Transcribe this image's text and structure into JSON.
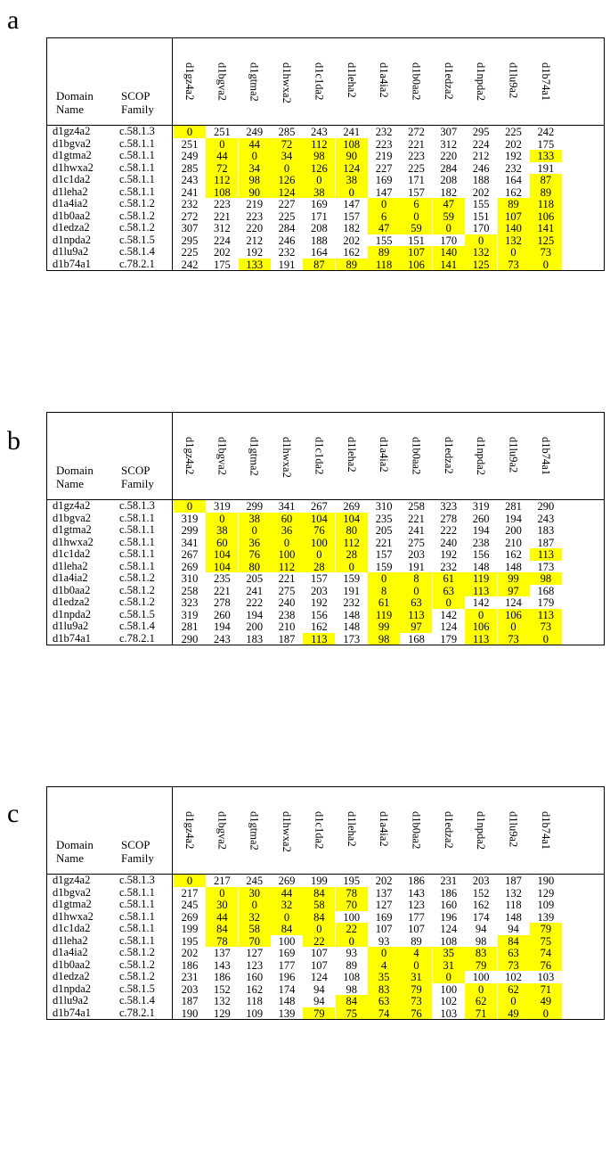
{
  "header": {
    "domain_name_line1": "Domain",
    "domain_name_line2": "Name",
    "scop_family_line1": "SCOP",
    "scop_family_line2": "Family"
  },
  "domains": [
    "d1gz4a2",
    "d1bgva2",
    "d1gtma2",
    "d1hwxa2",
    "d1c1da2",
    "d1leha2",
    "d1a4ia2",
    "d1b0aa2",
    "d1edza2",
    "d1npda2",
    "d1lu9a2",
    "d1b74a1"
  ],
  "families": [
    "c.58.1.3",
    "c.58.1.1",
    "c.58.1.1",
    "c.58.1.1",
    "c.58.1.1",
    "c.58.1.1",
    "c.58.1.2",
    "c.58.1.2",
    "c.58.1.2",
    "c.58.1.5",
    "c.58.1.4",
    "c.78.2.1"
  ],
  "panels": [
    {
      "label": "a",
      "matrix": [
        [
          0,
          251,
          249,
          285,
          243,
          241,
          232,
          272,
          307,
          295,
          225,
          242
        ],
        [
          251,
          0,
          44,
          72,
          112,
          108,
          223,
          221,
          312,
          224,
          202,
          175
        ],
        [
          249,
          44,
          0,
          34,
          98,
          90,
          219,
          223,
          220,
          212,
          192,
          133
        ],
        [
          285,
          72,
          34,
          0,
          126,
          124,
          227,
          225,
          284,
          246,
          232,
          191
        ],
        [
          243,
          112,
          98,
          126,
          0,
          38,
          169,
          171,
          208,
          188,
          164,
          87
        ],
        [
          241,
          108,
          90,
          124,
          38,
          0,
          147,
          157,
          182,
          202,
          162,
          89
        ],
        [
          232,
          223,
          219,
          227,
          169,
          147,
          0,
          6,
          47,
          155,
          89,
          118
        ],
        [
          272,
          221,
          223,
          225,
          171,
          157,
          6,
          0,
          59,
          151,
          107,
          106
        ],
        [
          307,
          312,
          220,
          284,
          208,
          182,
          47,
          59,
          0,
          170,
          140,
          141
        ],
        [
          295,
          224,
          212,
          246,
          188,
          202,
          155,
          151,
          170,
          0,
          132,
          125
        ],
        [
          225,
          202,
          192,
          232,
          164,
          162,
          89,
          107,
          140,
          132,
          0,
          73
        ],
        [
          242,
          175,
          133,
          191,
          87,
          89,
          118,
          106,
          141,
          125,
          73,
          0
        ]
      ],
      "highlight": [
        [
          1,
          0,
          0,
          0,
          0,
          0,
          0,
          0,
          0,
          0,
          0,
          0
        ],
        [
          0,
          1,
          1,
          1,
          1,
          1,
          0,
          0,
          0,
          0,
          0,
          0
        ],
        [
          0,
          1,
          1,
          1,
          1,
          1,
          0,
          0,
          0,
          0,
          0,
          1
        ],
        [
          0,
          1,
          1,
          1,
          1,
          1,
          0,
          0,
          0,
          0,
          0,
          0
        ],
        [
          0,
          1,
          1,
          1,
          1,
          1,
          0,
          0,
          0,
          0,
          0,
          1
        ],
        [
          0,
          1,
          1,
          1,
          1,
          1,
          0,
          0,
          0,
          0,
          0,
          1
        ],
        [
          0,
          0,
          0,
          0,
          0,
          0,
          1,
          1,
          1,
          0,
          1,
          1
        ],
        [
          0,
          0,
          0,
          0,
          0,
          0,
          1,
          1,
          1,
          0,
          1,
          1
        ],
        [
          0,
          0,
          0,
          0,
          0,
          0,
          1,
          1,
          1,
          0,
          1,
          1
        ],
        [
          0,
          0,
          0,
          0,
          0,
          0,
          0,
          0,
          0,
          1,
          1,
          1
        ],
        [
          0,
          0,
          0,
          0,
          0,
          0,
          1,
          1,
          1,
          1,
          1,
          1
        ],
        [
          0,
          0,
          1,
          0,
          1,
          1,
          1,
          1,
          1,
          1,
          1,
          1
        ]
      ]
    },
    {
      "label": "b",
      "matrix": [
        [
          0,
          319,
          299,
          341,
          267,
          269,
          310,
          258,
          323,
          319,
          281,
          290
        ],
        [
          319,
          0,
          38,
          60,
          104,
          104,
          235,
          221,
          278,
          260,
          194,
          243
        ],
        [
          299,
          38,
          0,
          36,
          76,
          80,
          205,
          241,
          222,
          194,
          200,
          183
        ],
        [
          341,
          60,
          36,
          0,
          100,
          112,
          221,
          275,
          240,
          238,
          210,
          187
        ],
        [
          267,
          104,
          76,
          100,
          0,
          28,
          157,
          203,
          192,
          156,
          162,
          113
        ],
        [
          269,
          104,
          80,
          112,
          28,
          0,
          159,
          191,
          232,
          148,
          148,
          173
        ],
        [
          310,
          235,
          205,
          221,
          157,
          159,
          0,
          8,
          61,
          119,
          99,
          98
        ],
        [
          258,
          221,
          241,
          275,
          203,
          191,
          8,
          0,
          63,
          113,
          97,
          168
        ],
        [
          323,
          278,
          222,
          240,
          192,
          232,
          61,
          63,
          0,
          142,
          124,
          179
        ],
        [
          319,
          260,
          194,
          238,
          156,
          148,
          119,
          113,
          142,
          0,
          106,
          113
        ],
        [
          281,
          194,
          200,
          210,
          162,
          148,
          99,
          97,
          124,
          106,
          0,
          73
        ],
        [
          290,
          243,
          183,
          187,
          113,
          173,
          98,
          168,
          179,
          113,
          73,
          0
        ]
      ],
      "highlight": [
        [
          1,
          0,
          0,
          0,
          0,
          0,
          0,
          0,
          0,
          0,
          0,
          0
        ],
        [
          0,
          1,
          1,
          1,
          1,
          1,
          0,
          0,
          0,
          0,
          0,
          0
        ],
        [
          0,
          1,
          1,
          1,
          1,
          1,
          0,
          0,
          0,
          0,
          0,
          0
        ],
        [
          0,
          1,
          1,
          1,
          1,
          1,
          0,
          0,
          0,
          0,
          0,
          0
        ],
        [
          0,
          1,
          1,
          1,
          1,
          1,
          0,
          0,
          0,
          0,
          0,
          1
        ],
        [
          0,
          1,
          1,
          1,
          1,
          1,
          0,
          0,
          0,
          0,
          0,
          0
        ],
        [
          0,
          0,
          0,
          0,
          0,
          0,
          1,
          1,
          1,
          1,
          1,
          1
        ],
        [
          0,
          0,
          0,
          0,
          0,
          0,
          1,
          1,
          1,
          1,
          1,
          0
        ],
        [
          0,
          0,
          0,
          0,
          0,
          0,
          1,
          1,
          1,
          0,
          0,
          0
        ],
        [
          0,
          0,
          0,
          0,
          0,
          0,
          1,
          1,
          0,
          1,
          1,
          1
        ],
        [
          0,
          0,
          0,
          0,
          0,
          0,
          1,
          1,
          0,
          1,
          1,
          1
        ],
        [
          0,
          0,
          0,
          0,
          1,
          0,
          1,
          0,
          0,
          1,
          1,
          1
        ]
      ]
    },
    {
      "label": "c",
      "matrix": [
        [
          0,
          217,
          245,
          269,
          199,
          195,
          202,
          186,
          231,
          203,
          187,
          190
        ],
        [
          217,
          0,
          30,
          44,
          84,
          78,
          137,
          143,
          186,
          152,
          132,
          129
        ],
        [
          245,
          30,
          0,
          32,
          58,
          70,
          127,
          123,
          160,
          162,
          118,
          109
        ],
        [
          269,
          44,
          32,
          0,
          84,
          100,
          169,
          177,
          196,
          174,
          148,
          139
        ],
        [
          199,
          84,
          58,
          84,
          0,
          22,
          107,
          107,
          124,
          94,
          94,
          79
        ],
        [
          195,
          78,
          70,
          100,
          22,
          0,
          93,
          89,
          108,
          98,
          84,
          75
        ],
        [
          202,
          137,
          127,
          169,
          107,
          93,
          0,
          4,
          35,
          83,
          63,
          74
        ],
        [
          186,
          143,
          123,
          177,
          107,
          89,
          4,
          0,
          31,
          79,
          73,
          76
        ],
        [
          231,
          186,
          160,
          196,
          124,
          108,
          35,
          31,
          0,
          100,
          102,
          103
        ],
        [
          203,
          152,
          162,
          174,
          94,
          98,
          83,
          79,
          100,
          0,
          62,
          71
        ],
        [
          187,
          132,
          118,
          148,
          94,
          84,
          63,
          73,
          102,
          62,
          0,
          49
        ],
        [
          190,
          129,
          109,
          139,
          79,
          75,
          74,
          76,
          103,
          71,
          49,
          0
        ]
      ],
      "highlight": [
        [
          1,
          0,
          0,
          0,
          0,
          0,
          0,
          0,
          0,
          0,
          0,
          0
        ],
        [
          0,
          1,
          1,
          1,
          1,
          1,
          0,
          0,
          0,
          0,
          0,
          0
        ],
        [
          0,
          1,
          1,
          1,
          1,
          1,
          0,
          0,
          0,
          0,
          0,
          0
        ],
        [
          0,
          1,
          1,
          1,
          1,
          0,
          0,
          0,
          0,
          0,
          0,
          0
        ],
        [
          0,
          1,
          1,
          1,
          1,
          1,
          0,
          0,
          0,
          0,
          0,
          1
        ],
        [
          0,
          1,
          1,
          0,
          1,
          1,
          0,
          0,
          0,
          0,
          1,
          1
        ],
        [
          0,
          0,
          0,
          0,
          0,
          0,
          1,
          1,
          1,
          1,
          1,
          1
        ],
        [
          0,
          0,
          0,
          0,
          0,
          0,
          1,
          1,
          1,
          1,
          1,
          1
        ],
        [
          0,
          0,
          0,
          0,
          0,
          0,
          1,
          1,
          1,
          0,
          0,
          0
        ],
        [
          0,
          0,
          0,
          0,
          0,
          0,
          1,
          1,
          0,
          1,
          1,
          1
        ],
        [
          0,
          0,
          0,
          0,
          0,
          1,
          1,
          1,
          0,
          1,
          1,
          1
        ],
        [
          0,
          0,
          0,
          0,
          1,
          1,
          1,
          1,
          0,
          1,
          1,
          1
        ]
      ]
    }
  ]
}
